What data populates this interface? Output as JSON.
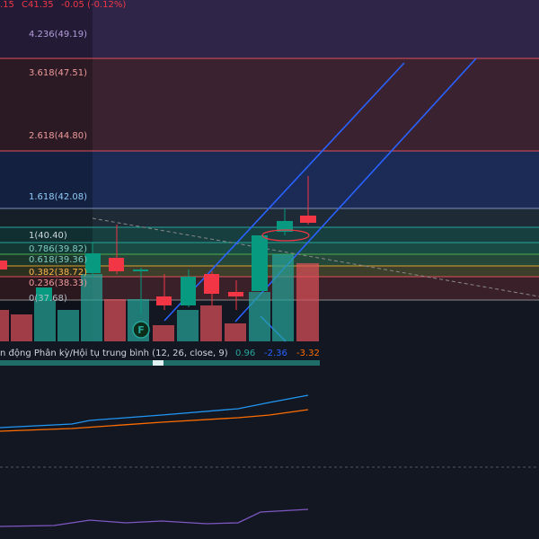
{
  "header": {
    "open_tail": ".15",
    "close": "C41.35",
    "change": "-0.05 (-0.12%)"
  },
  "fib_levels": [
    {
      "label": "4.236(49.19)"
    },
    {
      "label": "3.618(47.51)"
    },
    {
      "label": "2.618(44.80)"
    },
    {
      "label": "1.618(42.08)"
    },
    {
      "label": "1(40.40)"
    },
    {
      "label": "0.786(39.82)"
    },
    {
      "label": "0.618(39.36)"
    },
    {
      "label": "0.382(38.72)"
    },
    {
      "label": "0.236(38.33)"
    },
    {
      "label": "0(37.68)"
    }
  ],
  "marker": "F",
  "indicator": {
    "name": "n động Phân kỳ/Hội tụ trung bình (12, 26, close, 9)",
    "values": [
      "0.96",
      "-2.36",
      "-3.32"
    ]
  }
}
